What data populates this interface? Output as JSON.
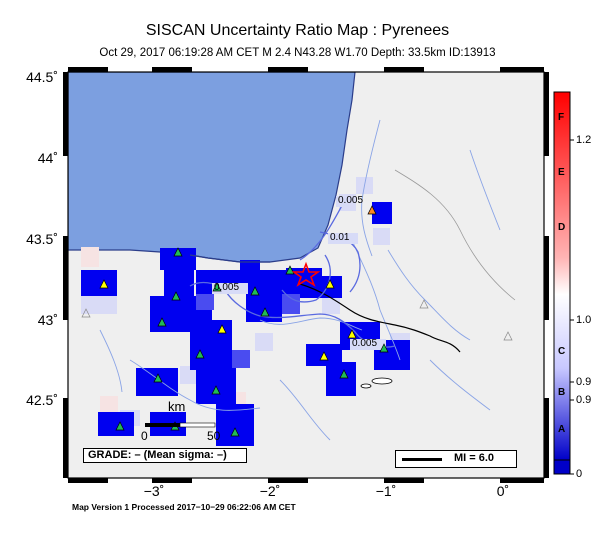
{
  "map": {
    "title": "SISCAN Uncertainty Ratio Map : Pyrenees",
    "subtitle": "Oct 29, 2017 06:19:28 AM CET   M 2.4   N43.28 W1.70   Depth: 33.5km   ID:13913",
    "y_ticks": [
      "44.5˚",
      "44˚",
      "43.5˚",
      "43˚",
      "42.5˚"
    ],
    "x_ticks": [
      "−3˚",
      "−2˚",
      "−1˚",
      "0˚"
    ],
    "contours": [
      "0.005",
      "0.01",
      "0.005",
      "0.005"
    ],
    "scale_unit": "km",
    "scale_values": [
      "0",
      "50"
    ],
    "grade_box": "GRADE: – (Mean sigma: –)",
    "mi_label": "MI = 6.0",
    "footer": "Map Version 1 Processed 2017−10−29 06:22:06 AM CET",
    "colors": {
      "ocean": "#7c9fe0",
      "land": "#efefef",
      "cell_high": "#0000f0",
      "cell_mid": "#b9bdf5",
      "epicenter": "#ff0000"
    }
  },
  "colorbar": {
    "grades": [
      "F",
      "E",
      "D",
      "C",
      "B",
      "A"
    ],
    "tick_labels": [
      "1.2",
      "1.0",
      "0.9",
      "0.9",
      "0"
    ],
    "top_color": "#ff0000",
    "bottom_color": "#0000c8"
  }
}
